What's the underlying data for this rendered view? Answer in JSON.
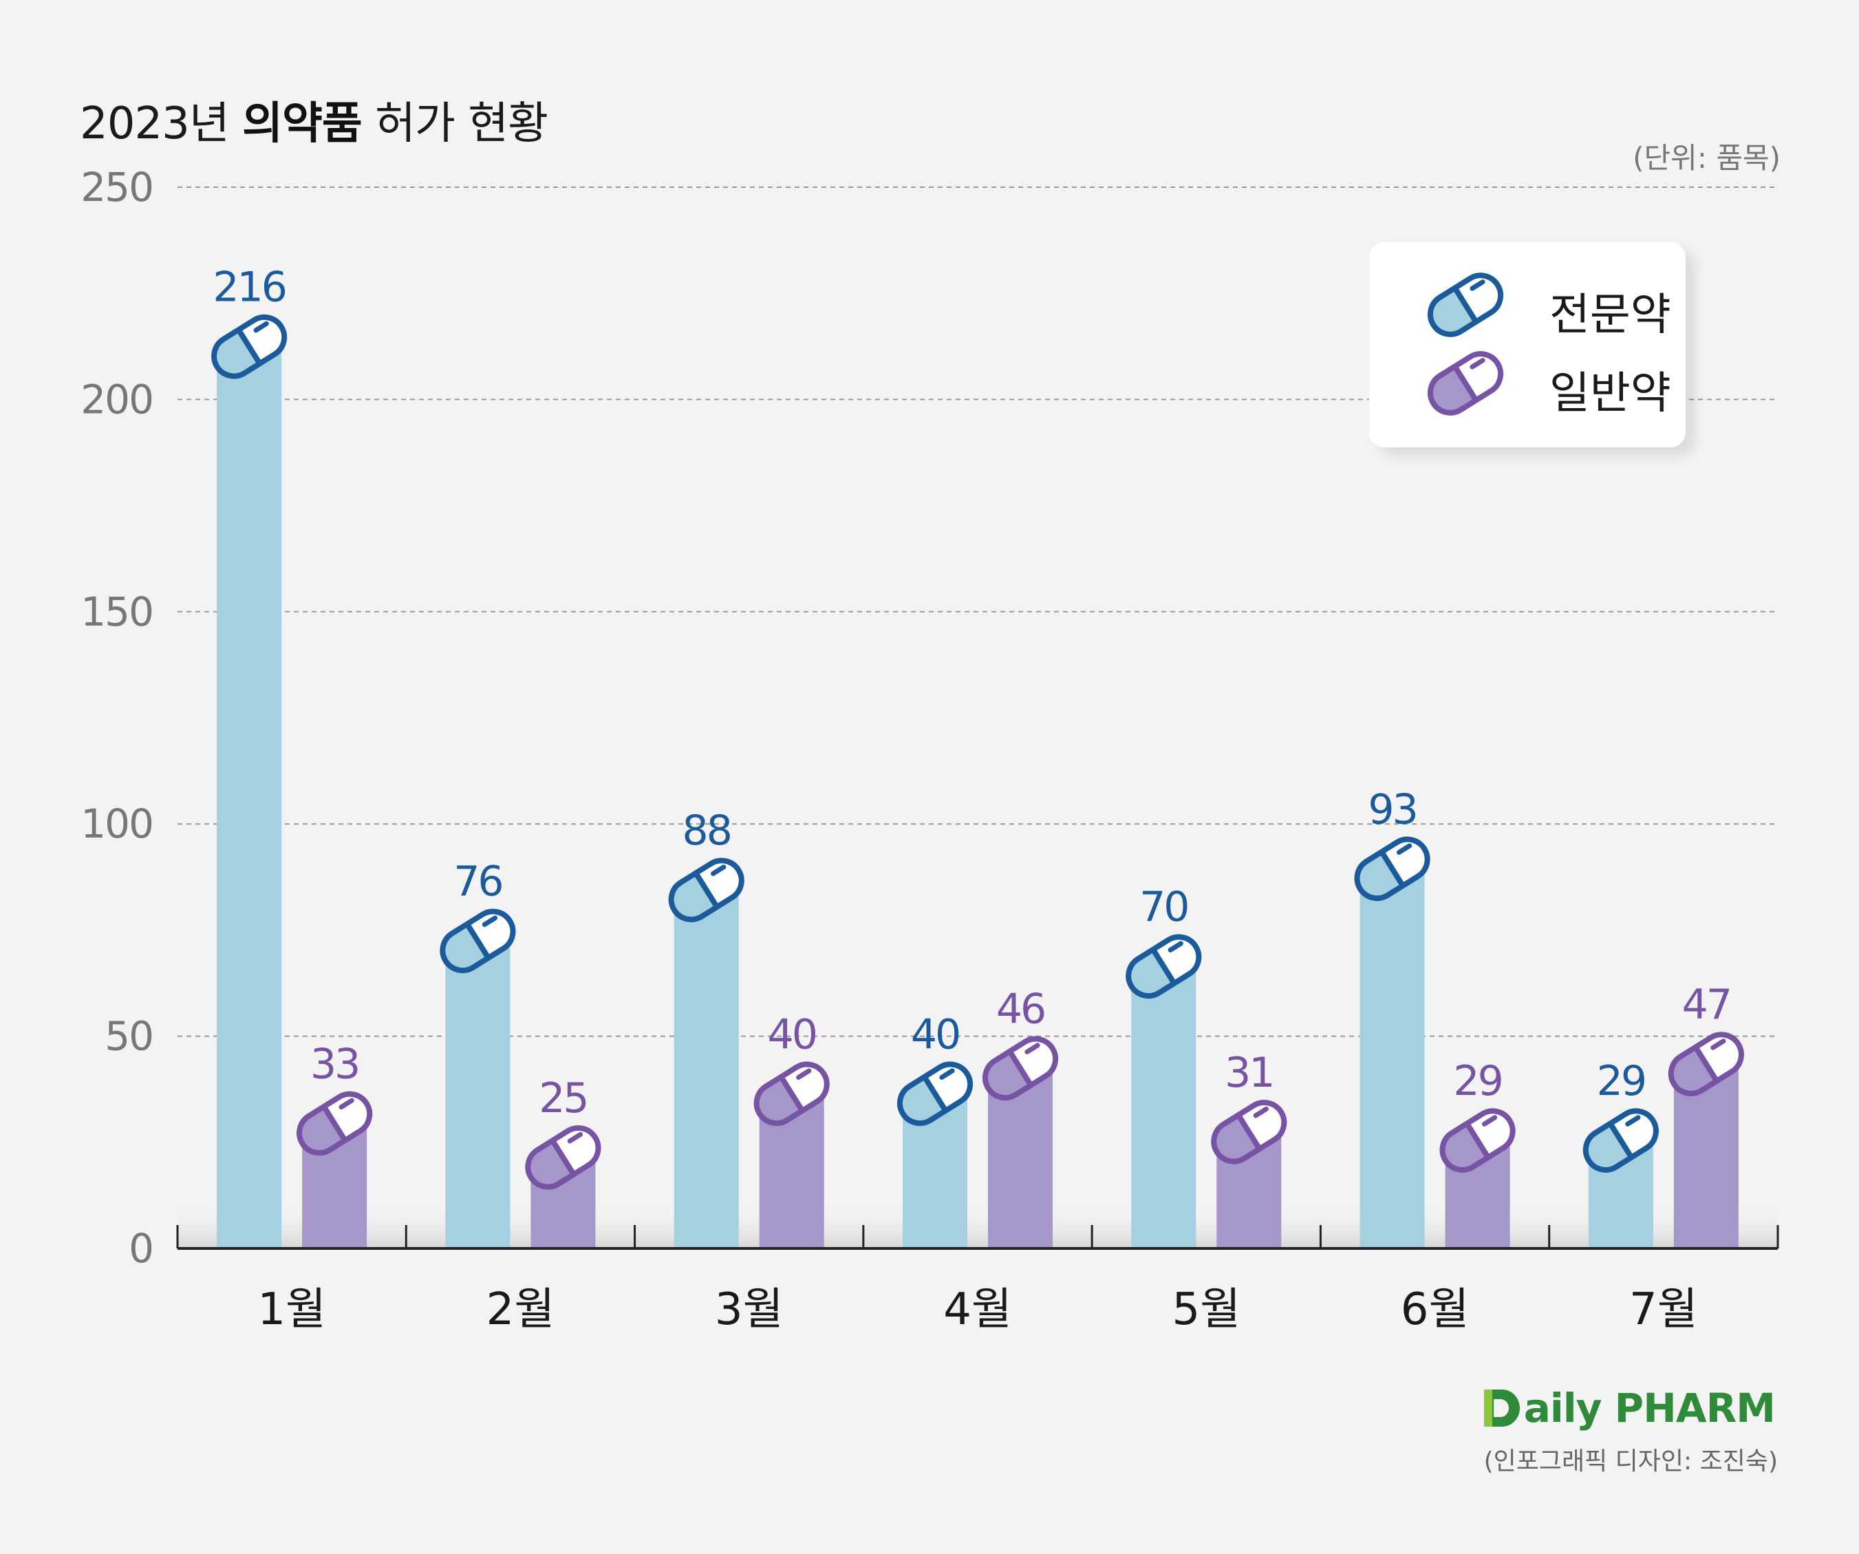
{
  "header": {
    "title_prefix": "2023년 ",
    "title_strong": "의약품",
    "title_suffix": " 허가 현황",
    "unit": "(단위: 품목)"
  },
  "legend": [
    {
      "label": "전문약",
      "icon": "capsule-blue-icon"
    },
    {
      "label": "일반약",
      "icon": "capsule-purple-icon"
    }
  ],
  "colors": {
    "prescription_bar": "#a4d0e0",
    "prescription_pill_fill": "#a4d0e0",
    "prescription_pill_stroke": "#1b5b9c",
    "prescription_label": "#1b5b9c",
    "otc_bar": "#a597c9",
    "otc_pill_fill": "#a597c9",
    "otc_pill_stroke": "#7653a3",
    "otc_label": "#7653a3",
    "grid": "#999999",
    "axis": "#222222",
    "tick_label": "#777777"
  },
  "chart_data": {
    "type": "bar",
    "categories": [
      "1월",
      "2월",
      "3월",
      "4월",
      "5월",
      "6월",
      "7월"
    ],
    "series": [
      {
        "name": "전문약",
        "values": [
          216,
          76,
          88,
          40,
          70,
          93,
          29
        ]
      },
      {
        "name": "일반약",
        "values": [
          33,
          25,
          40,
          46,
          31,
          29,
          47
        ]
      }
    ],
    "yticks": [
      "0",
      "50",
      "100",
      "150",
      "200",
      "250"
    ],
    "ylim": [
      0,
      250
    ],
    "grid": true,
    "legend_position": "top-right"
  },
  "footer": {
    "logo_text": "aily PHARM",
    "credit": "(인포그래픽 디자인: 조진숙)"
  }
}
